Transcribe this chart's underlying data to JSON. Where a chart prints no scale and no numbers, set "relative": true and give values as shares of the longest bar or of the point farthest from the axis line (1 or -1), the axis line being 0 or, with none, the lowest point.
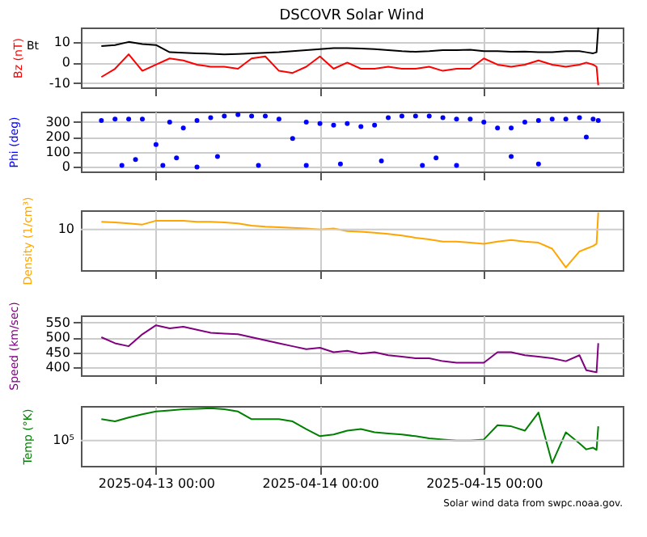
{
  "chart_data": [
    {
      "type": "line",
      "title": "DSCOVR Solar Wind",
      "ylabel": "Bz (nT)",
      "grid": true,
      "tick_labels": "y",
      "xlim": [
        "2025-04-12T13:00",
        "2025-04-15T20:20"
      ],
      "ylim": [
        -12,
        17
      ],
      "yticks": [
        -10,
        0,
        10
      ],
      "xticks": [
        {
          "value": "2025-04-13T00:00",
          "label": null
        },
        {
          "value": "2025-04-14T00:00",
          "label": null
        },
        {
          "value": "2025-04-15T00:00",
          "label": null
        }
      ],
      "x": [
        "2025-04-12T16:00",
        "2025-04-12T18:00",
        "2025-04-12T20:00",
        "2025-04-12T22:00",
        "2025-04-13T00:00",
        "2025-04-13T02:00",
        "2025-04-13T04:00",
        "2025-04-13T06:00",
        "2025-04-13T08:00",
        "2025-04-13T10:00",
        "2025-04-13T12:00",
        "2025-04-13T14:00",
        "2025-04-13T16:00",
        "2025-04-13T18:00",
        "2025-04-13T20:00",
        "2025-04-13T22:00",
        "2025-04-14T00:00",
        "2025-04-14T02:00",
        "2025-04-14T04:00",
        "2025-04-14T06:00",
        "2025-04-14T08:00",
        "2025-04-14T10:00",
        "2025-04-14T12:00",
        "2025-04-14T14:00",
        "2025-04-14T16:00",
        "2025-04-14T18:00",
        "2025-04-14T20:00",
        "2025-04-14T22:00",
        "2025-04-15T00:00",
        "2025-04-15T02:00",
        "2025-04-15T04:00",
        "2025-04-15T06:00",
        "2025-04-15T08:00",
        "2025-04-15T10:00",
        "2025-04-15T12:00",
        "2025-04-15T14:00",
        "2025-04-15T15:00",
        "2025-04-15T16:00",
        "2025-04-15T16:30",
        "2025-04-15T16:45"
      ],
      "series": [
        {
          "name": "Bt",
          "color": "#000000",
          "values": [
            8,
            8.5,
            10,
            9,
            8.5,
            5,
            4.8,
            4.5,
            4.3,
            4,
            4.2,
            4.5,
            4.8,
            5,
            5.5,
            6,
            6.5,
            7,
            7,
            6.8,
            6.5,
            6,
            5.5,
            5.2,
            5.5,
            6,
            6,
            6.2,
            5.5,
            5.5,
            5.2,
            5.3,
            5,
            5,
            5.5,
            5.5,
            5,
            4.5,
            5,
            17
          ]
        },
        {
          "color": "#ff0000",
          "values": [
            -7,
            -3,
            4,
            -4,
            -1,
            2,
            1,
            -1,
            -2,
            -2,
            -3,
            2,
            3,
            -4,
            -5,
            -2,
            3,
            -3,
            0,
            -3,
            -3,
            -2,
            -3,
            -3,
            -2,
            -4,
            -3,
            -3,
            2,
            -1,
            -2,
            -1,
            1,
            -1,
            -2,
            -1,
            0,
            -1,
            -2,
            -11
          ]
        }
      ]
    },
    {
      "type": "scatter",
      "ylabel": "Phi (deg)",
      "grid": true,
      "tick_labels": "y",
      "xlim": [
        "2025-04-12T13:00",
        "2025-04-15T20:20"
      ],
      "ylim": [
        -30,
        370
      ],
      "yticks": [
        0,
        100,
        200,
        300
      ],
      "xticks": [
        {
          "value": "2025-04-13T00:00",
          "label": null
        },
        {
          "value": "2025-04-14T00:00",
          "label": null
        },
        {
          "value": "2025-04-15T00:00",
          "label": null
        }
      ],
      "x": [
        "2025-04-12T16:00",
        "2025-04-12T18:00",
        "2025-04-12T20:00",
        "2025-04-12T22:00",
        "2025-04-13T00:00",
        "2025-04-13T02:00",
        "2025-04-13T04:00",
        "2025-04-13T06:00",
        "2025-04-13T08:00",
        "2025-04-13T10:00",
        "2025-04-13T12:00",
        "2025-04-13T14:00",
        "2025-04-13T16:00",
        "2025-04-13T18:00",
        "2025-04-13T20:00",
        "2025-04-13T22:00",
        "2025-04-14T00:00",
        "2025-04-14T02:00",
        "2025-04-14T04:00",
        "2025-04-14T06:00",
        "2025-04-14T08:00",
        "2025-04-14T10:00",
        "2025-04-14T12:00",
        "2025-04-14T14:00",
        "2025-04-14T16:00",
        "2025-04-14T18:00",
        "2025-04-14T20:00",
        "2025-04-14T22:00",
        "2025-04-15T00:00",
        "2025-04-15T02:00",
        "2025-04-15T04:00",
        "2025-04-15T06:00",
        "2025-04-15T08:00",
        "2025-04-15T10:00",
        "2025-04-15T12:00",
        "2025-04-15T14:00",
        "2025-04-15T15:00",
        "2025-04-15T16:00",
        "2025-04-15T16:30",
        "2025-04-15T16:45"
      ],
      "series": [
        {
          "color": "#0000ff",
          "values": [
            310,
            320,
            320,
            320,
            150,
            300,
            260,
            310,
            330,
            340,
            350,
            340,
            340,
            320,
            190,
            300,
            290,
            280,
            290,
            270,
            280,
            330,
            340,
            340,
            340,
            330,
            320,
            320,
            300,
            260,
            260,
            300,
            310,
            320,
            320,
            330,
            200,
            320,
            null,
            310
          ]
        },
        {
          "color": "#0000ff",
          "x": [
            "2025-04-12T19:00",
            "2025-04-12T21:00",
            "2025-04-13T01:00",
            "2025-04-13T03:00",
            "2025-04-13T06:00",
            "2025-04-13T09:00",
            "2025-04-13T15:00",
            "2025-04-13T22:00",
            "2025-04-14T03:00",
            "2025-04-14T09:00",
            "2025-04-14T15:00",
            "2025-04-14T17:00",
            "2025-04-14T20:00",
            "2025-04-15T04:00",
            "2025-04-15T08:00"
          ],
          "values": [
            10,
            50,
            10,
            60,
            0,
            70,
            10,
            10,
            20,
            40,
            10,
            60,
            10,
            70,
            20
          ]
        }
      ]
    },
    {
      "type": "line",
      "ylabel": "Density (1/cm³)",
      "grid": "x",
      "tick_labels": false,
      "relative": true,
      "ref_lines": [
        {
          "axis": "y",
          "value": 0.69,
          "color": "#cccccc"
        }
      ],
      "annotations": [
        "10"
      ],
      "xlim": [
        "2025-04-12T13:00",
        "2025-04-15T20:20"
      ],
      "xticks": [
        {
          "value": "2025-04-13T00:00",
          "label": null
        },
        {
          "value": "2025-04-14T00:00",
          "label": null
        },
        {
          "value": "2025-04-15T00:00",
          "label": null
        }
      ],
      "x": [
        "2025-04-12T16:00",
        "2025-04-12T18:00",
        "2025-04-12T20:00",
        "2025-04-12T22:00",
        "2025-04-13T00:00",
        "2025-04-13T02:00",
        "2025-04-13T04:00",
        "2025-04-13T06:00",
        "2025-04-13T08:00",
        "2025-04-13T10:00",
        "2025-04-13T12:00",
        "2025-04-13T14:00",
        "2025-04-13T16:00",
        "2025-04-13T18:00",
        "2025-04-13T20:00",
        "2025-04-13T22:00",
        "2025-04-14T00:00",
        "2025-04-14T02:00",
        "2025-04-14T04:00",
        "2025-04-14T06:00",
        "2025-04-14T08:00",
        "2025-04-14T10:00",
        "2025-04-14T12:00",
        "2025-04-14T14:00",
        "2025-04-14T16:00",
        "2025-04-14T18:00",
        "2025-04-14T20:00",
        "2025-04-14T22:00",
        "2025-04-15T00:00",
        "2025-04-15T02:00",
        "2025-04-15T04:00",
        "2025-04-15T06:00",
        "2025-04-15T08:00",
        "2025-04-15T10:00",
        "2025-04-15T12:00",
        "2025-04-15T14:00",
        "2025-04-15T15:00",
        "2025-04-15T16:00",
        "2025-04-15T16:30",
        "2025-04-15T16:45"
      ],
      "series": [
        {
          "color": "#ffa500",
          "values": [
            0.83,
            0.82,
            0.8,
            0.78,
            0.85,
            0.85,
            0.85,
            0.83,
            0.83,
            0.82,
            0.8,
            0.76,
            0.74,
            0.73,
            0.72,
            0.71,
            0.69,
            0.71,
            0.66,
            0.65,
            0.63,
            0.61,
            0.58,
            0.54,
            0.51,
            0.47,
            0.47,
            0.45,
            0.43,
            0.47,
            0.5,
            0.47,
            0.45,
            0.34,
            0,
            0.29,
            0.34,
            0.39,
            0.43,
            1
          ]
        }
      ]
    },
    {
      "type": "line",
      "ylabel": "Speed (km/sec)",
      "grid": true,
      "tick_labels": "y",
      "xlim": [
        "2025-04-12T13:00",
        "2025-04-15T20:20"
      ],
      "ylim": [
        373,
        573
      ],
      "yticks": [
        400,
        450,
        500,
        550
      ],
      "xticks": [
        {
          "value": "2025-04-13T00:00",
          "label": null
        },
        {
          "value": "2025-04-14T00:00",
          "label": null
        },
        {
          "value": "2025-04-15T00:00",
          "label": null
        }
      ],
      "x": [
        "2025-04-12T16:00",
        "2025-04-12T18:00",
        "2025-04-12T20:00",
        "2025-04-12T22:00",
        "2025-04-13T00:00",
        "2025-04-13T02:00",
        "2025-04-13T04:00",
        "2025-04-13T06:00",
        "2025-04-13T08:00",
        "2025-04-13T10:00",
        "2025-04-13T12:00",
        "2025-04-13T14:00",
        "2025-04-13T16:00",
        "2025-04-13T18:00",
        "2025-04-13T20:00",
        "2025-04-13T22:00",
        "2025-04-14T00:00",
        "2025-04-14T02:00",
        "2025-04-14T04:00",
        "2025-04-14T06:00",
        "2025-04-14T08:00",
        "2025-04-14T10:00",
        "2025-04-14T12:00",
        "2025-04-14T14:00",
        "2025-04-14T16:00",
        "2025-04-14T18:00",
        "2025-04-14T20:00",
        "2025-04-14T22:00",
        "2025-04-15T00:00",
        "2025-04-15T02:00",
        "2025-04-15T04:00",
        "2025-04-15T06:00",
        "2025-04-15T08:00",
        "2025-04-15T10:00",
        "2025-04-15T12:00",
        "2025-04-15T14:00",
        "2025-04-15T15:00",
        "2025-04-15T16:00",
        "2025-04-15T16:30",
        "2025-04-15T16:45"
      ],
      "series": [
        {
          "color": "#800080",
          "values": [
            500,
            480,
            470,
            510,
            540,
            530,
            535,
            525,
            515,
            512,
            510,
            500,
            490,
            480,
            470,
            460,
            465,
            450,
            455,
            445,
            450,
            440,
            435,
            430,
            430,
            420,
            415,
            415,
            415,
            450,
            450,
            440,
            435,
            430,
            420,
            440,
            390,
            385,
            383,
            480
          ]
        }
      ]
    },
    {
      "type": "line",
      "ylabel": "Temp (°K)",
      "grid": "x",
      "tick_labels": "x",
      "relative": true,
      "ref_lines": [
        {
          "axis": "y",
          "value": 0.41,
          "color": "#cccccc"
        }
      ],
      "xlim": [
        "2025-04-12T13:00",
        "2025-04-15T20:20"
      ],
      "xticks": [
        {
          "value": "2025-04-13T00:00",
          "label": "2025-04-13 00:00"
        },
        {
          "value": "2025-04-14T00:00",
          "label": "2025-04-14 00:00"
        },
        {
          "value": "2025-04-15T00:00",
          "label": "2025-04-15 00:00"
        }
      ],
      "annotations": [
        "10⁵",
        "Solar wind data from swpc.noaa.gov."
      ],
      "x": [
        "2025-04-12T16:00",
        "2025-04-12T18:00",
        "2025-04-12T20:00",
        "2025-04-12T22:00",
        "2025-04-13T00:00",
        "2025-04-13T02:00",
        "2025-04-13T04:00",
        "2025-04-13T06:00",
        "2025-04-13T08:00",
        "2025-04-13T10:00",
        "2025-04-13T12:00",
        "2025-04-13T14:00",
        "2025-04-13T16:00",
        "2025-04-13T18:00",
        "2025-04-13T20:00",
        "2025-04-13T22:00",
        "2025-04-14T00:00",
        "2025-04-14T02:00",
        "2025-04-14T04:00",
        "2025-04-14T06:00",
        "2025-04-14T08:00",
        "2025-04-14T10:00",
        "2025-04-14T12:00",
        "2025-04-14T14:00",
        "2025-04-14T16:00",
        "2025-04-14T18:00",
        "2025-04-14T20:00",
        "2025-04-14T22:00",
        "2025-04-15T00:00",
        "2025-04-15T02:00",
        "2025-04-15T04:00",
        "2025-04-15T06:00",
        "2025-04-15T08:00",
        "2025-04-15T10:00",
        "2025-04-15T12:00",
        "2025-04-15T14:00",
        "2025-04-15T15:00",
        "2025-04-15T16:00",
        "2025-04-15T16:30",
        "2025-04-15T16:45"
      ],
      "series": [
        {
          "color": "#008000",
          "values": [
            0.8,
            0.76,
            0.83,
            0.89,
            0.94,
            0.96,
            0.98,
            0.99,
            1,
            0.98,
            0.94,
            0.8,
            0.8,
            0.8,
            0.76,
            0.62,
            0.49,
            0.52,
            0.59,
            0.62,
            0.56,
            0.54,
            0.52,
            0.49,
            0.45,
            0.43,
            0.41,
            0.41,
            0.43,
            0.69,
            0.67,
            0.59,
            0.92,
            0,
            0.56,
            0.36,
            0.25,
            0.28,
            0.24,
            0.67
          ]
        }
      ]
    }
  ]
}
